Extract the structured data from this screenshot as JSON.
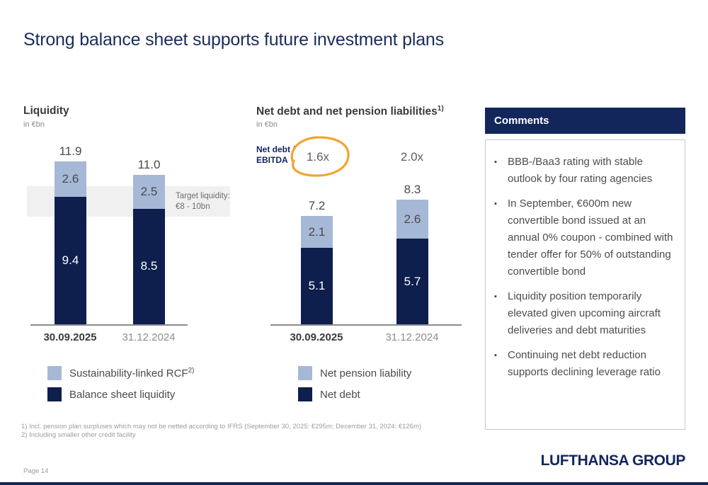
{
  "slide": {
    "title": "Strong balance sheet supports future investment plans",
    "page_label": "Page 14",
    "logo_text": "LUFTHANSA GROUP",
    "footnotes": [
      "1) Incl. pension plan surpluses which may not be netted according to IFRS (September 30, 2025: €295m; December 31, 2024: €126m)",
      "2) Including smaller other credit facility"
    ]
  },
  "colors": {
    "navy": "#13265c",
    "bar_dark": "#0e1f4d",
    "bar_light": "#a5b8d6",
    "accent_orange": "#f2a430",
    "target_band_gray": "#f0f0f0"
  },
  "chart_data": [
    {
      "type": "bar",
      "stacked": true,
      "title": "Liquidity",
      "unit_label": "in €bn",
      "categories": [
        "30.09.2025",
        "31.12.2024"
      ],
      "series": [
        {
          "name": "Balance sheet liquidity",
          "color": "#0e1f4d",
          "values": [
            9.4,
            8.5
          ]
        },
        {
          "name": "Sustainability-linked RCF",
          "legend_sup": "2)",
          "color": "#a5b8d6",
          "values": [
            2.6,
            2.5
          ]
        }
      ],
      "totals": [
        "11.9",
        "11.0"
      ],
      "ylim": [
        0,
        12.5
      ],
      "grid": false,
      "legend_position": "bottom",
      "annotation_band": {
        "from": 8,
        "to": 10,
        "label_line1": "Target liquidity:",
        "label_line2": "€8 - 10bn"
      }
    },
    {
      "type": "bar",
      "stacked": true,
      "title": "Net debt and net pension liabilities",
      "title_sup": "1)",
      "unit_label": "in €bn",
      "categories": [
        "30.09.2025",
        "31.12.2024"
      ],
      "series": [
        {
          "name": "Net debt",
          "color": "#0e1f4d",
          "values": [
            5.1,
            5.7
          ]
        },
        {
          "name": "Net pension liability",
          "color": "#a5b8d6",
          "values": [
            2.1,
            2.6
          ]
        }
      ],
      "totals": [
        "7.2",
        "8.3"
      ],
      "ylim": [
        0,
        12.5
      ],
      "grid": false,
      "legend_position": "bottom",
      "ratio_label_line1": "Net debt /",
      "ratio_label_line2": "EBITDA",
      "ratios": [
        "1.6x",
        "2.0x"
      ],
      "highlight": "first ratio circled in orange"
    }
  ],
  "comments": {
    "header": "Comments",
    "bullets": [
      "BBB-/Baa3 rating with stable outlook by four rating agencies",
      "In September, €600m new convertible bond issued at an annual 0% coupon - combined with tender offer for 50% of outstanding convertible bond",
      "Liquidity position temporarily elevated given upcoming aircraft deliveries and debt maturities",
      "Continuing net debt reduction supports declining leverage ratio"
    ]
  }
}
